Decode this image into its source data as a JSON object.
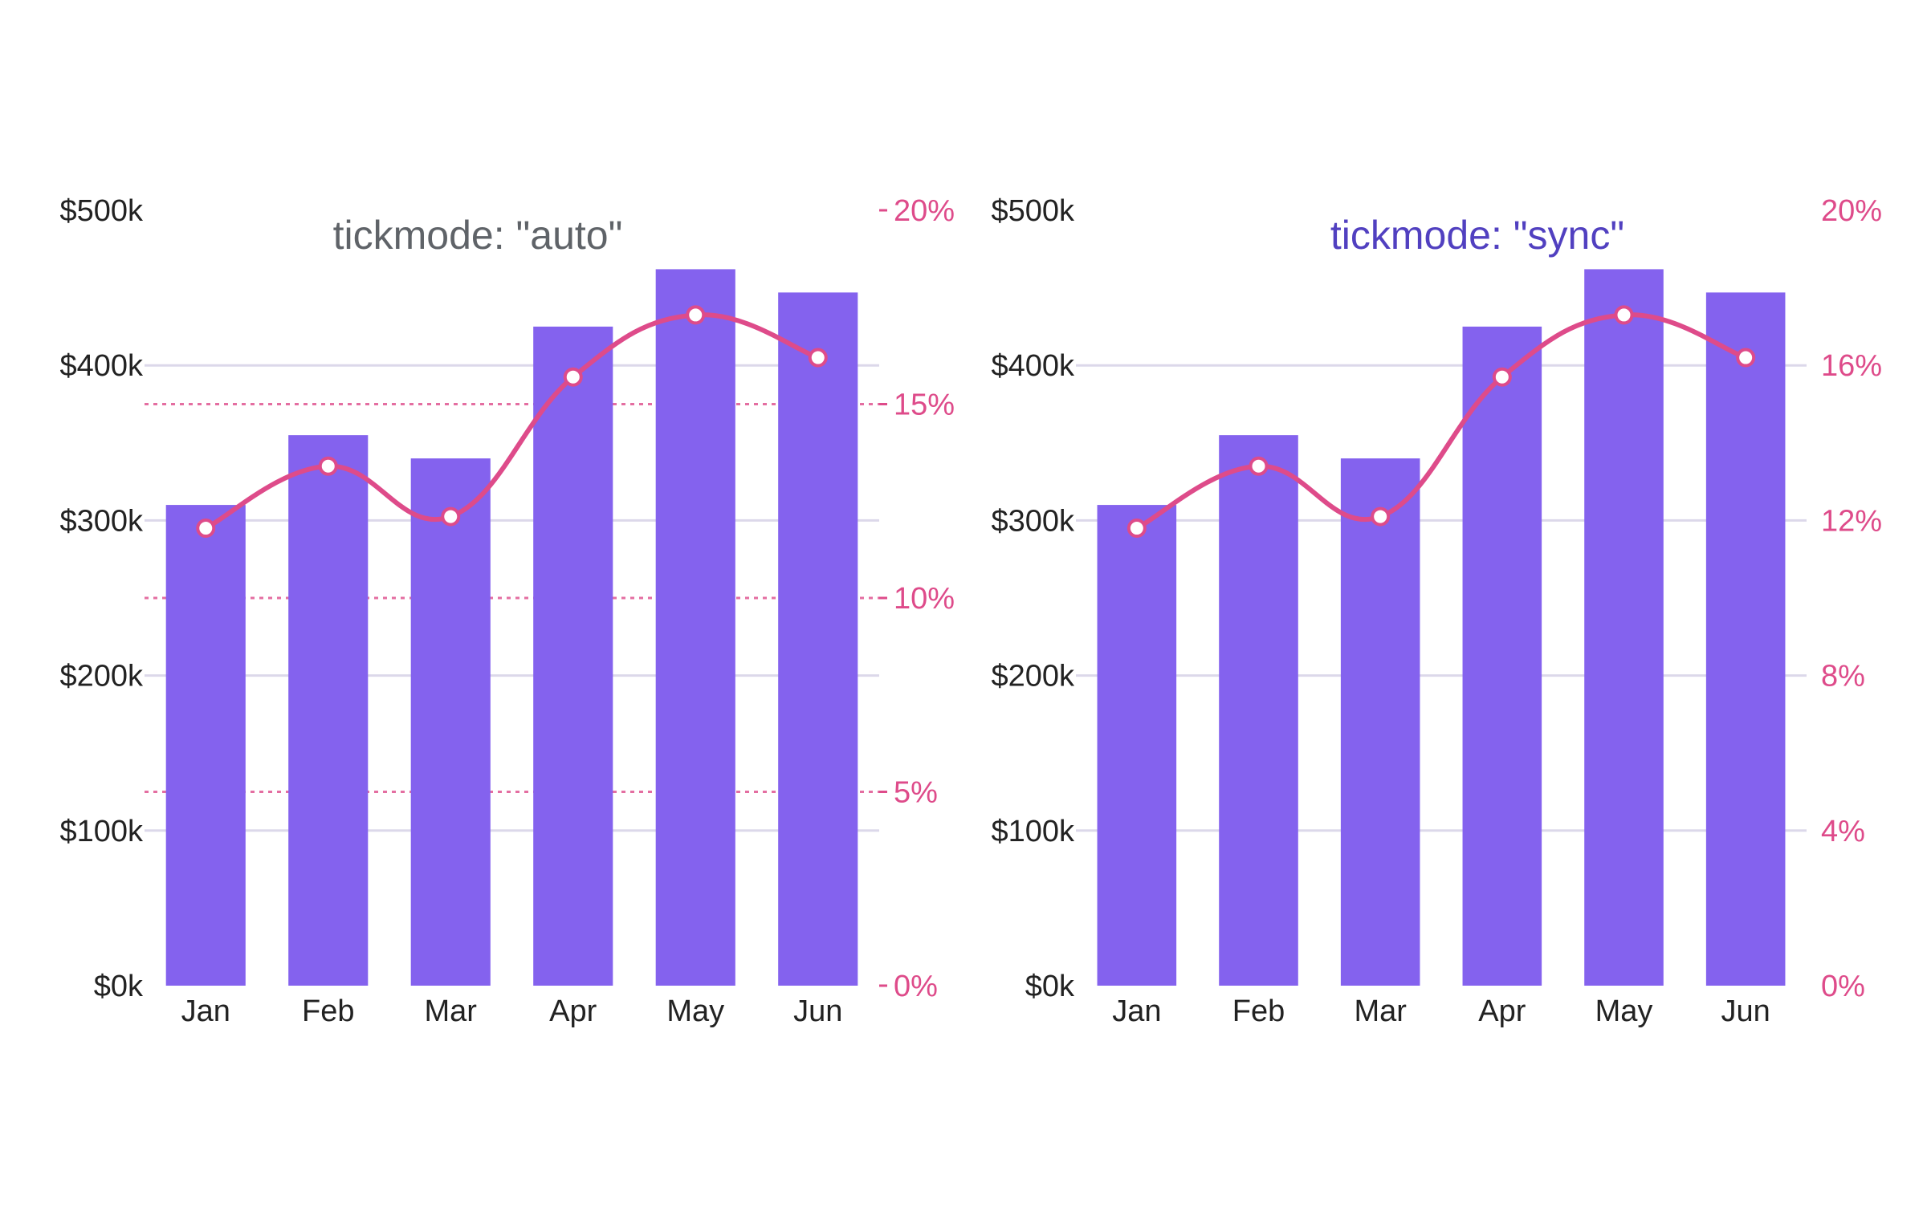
{
  "chart_data": [
    {
      "type": "bar+line",
      "title": "tickmode: \"auto\"",
      "categories": [
        "Jan",
        "Feb",
        "Mar",
        "Apr",
        "May",
        "Jun"
      ],
      "series": [
        {
          "values": [
            310000,
            355000,
            340000,
            425000,
            462000,
            447000
          ],
          "axis": "y",
          "kind": "bar"
        },
        {
          "values": [
            11.8,
            13.4,
            12.1,
            15.7,
            17.3,
            16.2
          ],
          "axis": "y2",
          "kind": "line"
        }
      ],
      "y": {
        "ylim": [
          0,
          500000
        ],
        "ticks": [
          0,
          100000,
          200000,
          300000,
          400000,
          500000
        ],
        "tick_labels": [
          "$0k",
          "$100k",
          "$200k",
          "$300k",
          "$400k",
          "$500k"
        ],
        "grid": true
      },
      "y2": {
        "ylim": [
          0,
          20
        ],
        "ticks": [
          0,
          5,
          10,
          15,
          20
        ],
        "tick_labels": [
          "0%",
          "5%",
          "10%",
          "15%",
          "20%"
        ],
        "grid": "dotted",
        "tickmode": "auto"
      },
      "colors": {
        "bar": "#8462ee",
        "line": "#de4b8a",
        "title": "#5f6368"
      },
      "legend": "none"
    },
    {
      "type": "bar+line",
      "title": "tickmode: \"sync\"",
      "categories": [
        "Jan",
        "Feb",
        "Mar",
        "Apr",
        "May",
        "Jun"
      ],
      "series": [
        {
          "values": [
            310000,
            355000,
            340000,
            425000,
            462000,
            447000
          ],
          "axis": "y",
          "kind": "bar"
        },
        {
          "values": [
            11.8,
            13.4,
            12.1,
            15.7,
            17.3,
            16.2
          ],
          "axis": "y2",
          "kind": "line"
        }
      ],
      "y": {
        "ylim": [
          0,
          500000
        ],
        "ticks": [
          0,
          100000,
          200000,
          300000,
          400000,
          500000
        ],
        "tick_labels": [
          "$0k",
          "$100k",
          "$200k",
          "$300k",
          "$400k",
          "$500k"
        ],
        "grid": true
      },
      "y2": {
        "ylim": [
          0,
          20
        ],
        "ticks": [
          0,
          4,
          8,
          12,
          16,
          20
        ],
        "tick_labels": [
          "0%",
          "4%",
          "8%",
          "12%",
          "16%",
          "20%"
        ],
        "grid": false,
        "tickmode": "sync"
      },
      "colors": {
        "bar": "#8462ee",
        "line": "#de4b8a",
        "title": "#5140c0"
      },
      "legend": "none"
    }
  ]
}
